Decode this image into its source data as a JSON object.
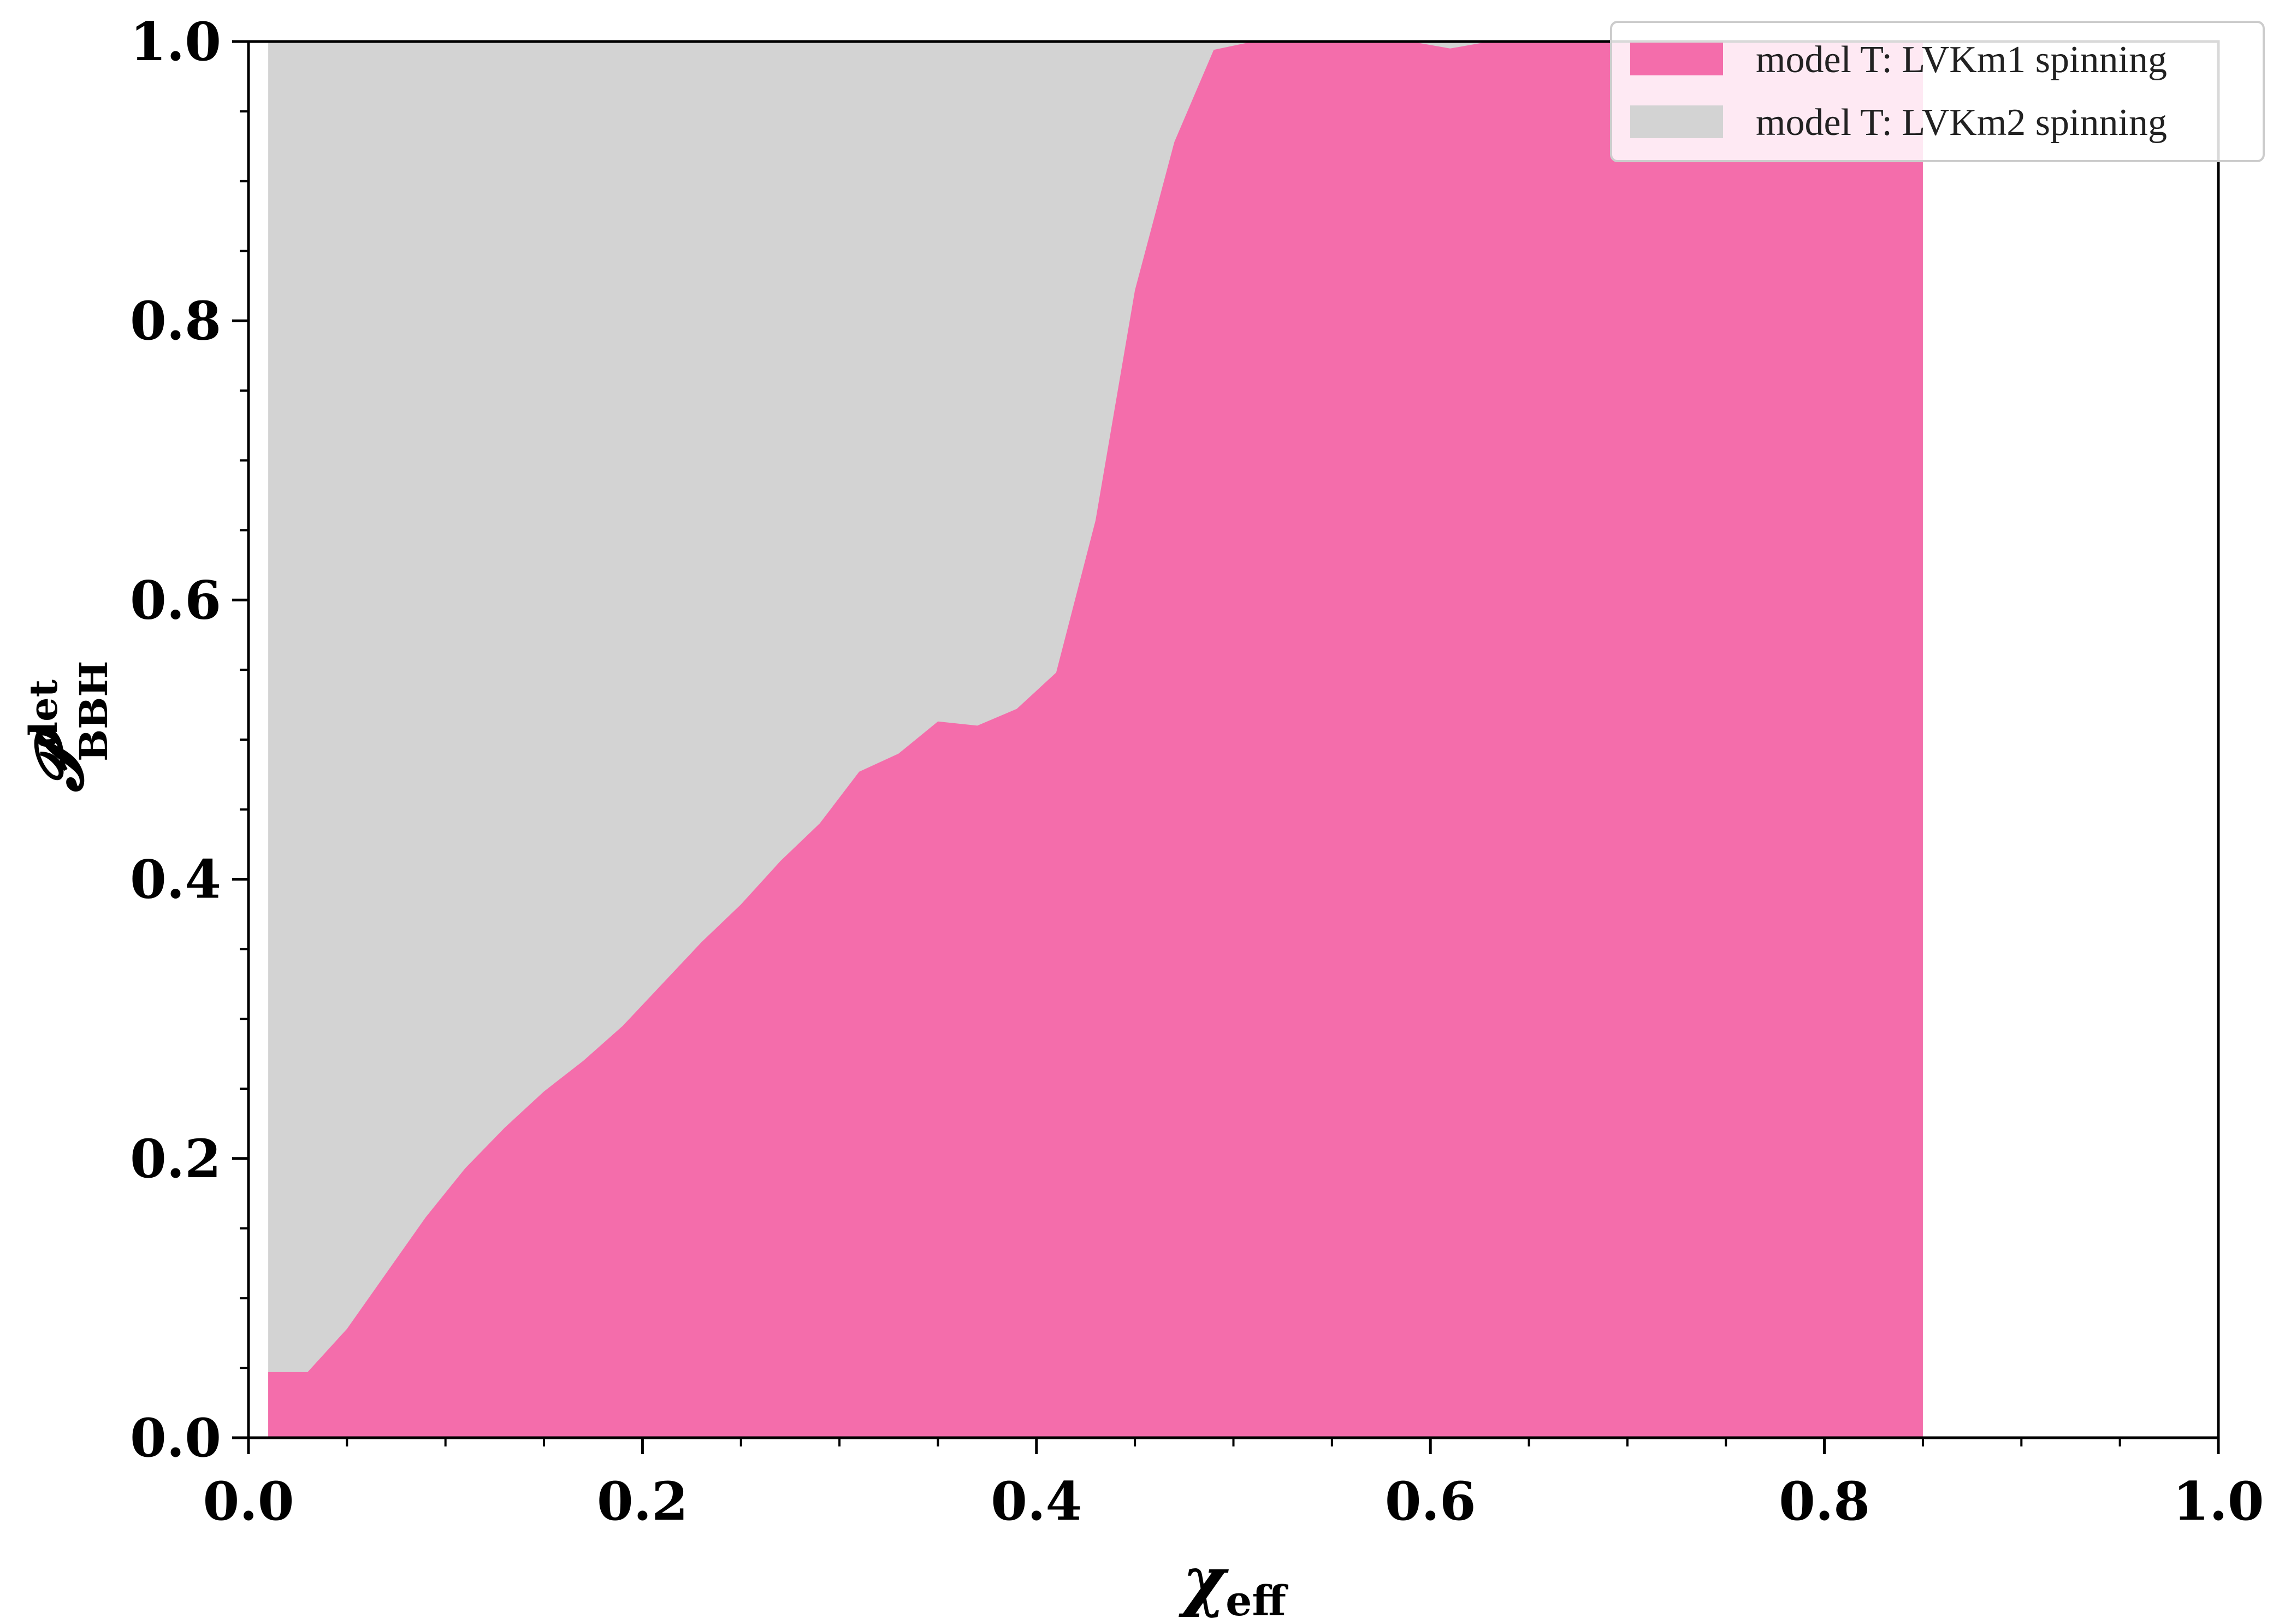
{
  "chart_data": {
    "type": "area",
    "xlabel": {
      "main": "χ",
      "sub": "eff"
    },
    "ylabel": {
      "main": "𝓟",
      "sup": "det",
      "sub": "BBH"
    },
    "xlim": [
      0.0,
      1.0
    ],
    "ylim": [
      0.0,
      1.0
    ],
    "x_ticks": [
      "0.0",
      "0.2",
      "0.4",
      "0.6",
      "0.8",
      "1.0"
    ],
    "y_ticks": [
      "0.0",
      "0.2",
      "0.4",
      "0.6",
      "0.8",
      "1.0"
    ],
    "grid": false,
    "legend_position": "top-right",
    "series": [
      {
        "name": "model T: LVKm2 spinning",
        "color": "#d3d3d3",
        "x": [
          0.01,
          0.85
        ],
        "y": [
          1.0,
          1.0
        ]
      },
      {
        "name": "model T: LVKm1 spinning",
        "color": "#f46dab",
        "x": [
          0.01,
          0.03,
          0.05,
          0.07,
          0.09,
          0.11,
          0.13,
          0.15,
          0.17,
          0.19,
          0.21,
          0.23,
          0.25,
          0.27,
          0.29,
          0.31,
          0.33,
          0.35,
          0.37,
          0.39,
          0.41,
          0.43,
          0.45,
          0.47,
          0.49,
          0.51,
          0.53,
          0.55,
          0.57,
          0.59,
          0.61,
          0.63,
          0.65,
          0.67,
          0.69,
          0.71,
          0.73,
          0.75,
          0.77,
          0.79,
          0.81,
          0.83,
          0.85
        ],
        "y": [
          0.047,
          0.047,
          0.078,
          0.118,
          0.158,
          0.193,
          0.222,
          0.248,
          0.27,
          0.295,
          0.325,
          0.355,
          0.382,
          0.413,
          0.44,
          0.477,
          0.49,
          0.513,
          0.51,
          0.522,
          0.548,
          0.657,
          0.822,
          0.928,
          0.994,
          1.0,
          1.0,
          1.0,
          1.0,
          1.0,
          0.995,
          1.0,
          1.0,
          1.0,
          1.0,
          1.0,
          1.0,
          1.0,
          1.0,
          1.0,
          1.0,
          1.0,
          1.0
        ]
      }
    ]
  }
}
